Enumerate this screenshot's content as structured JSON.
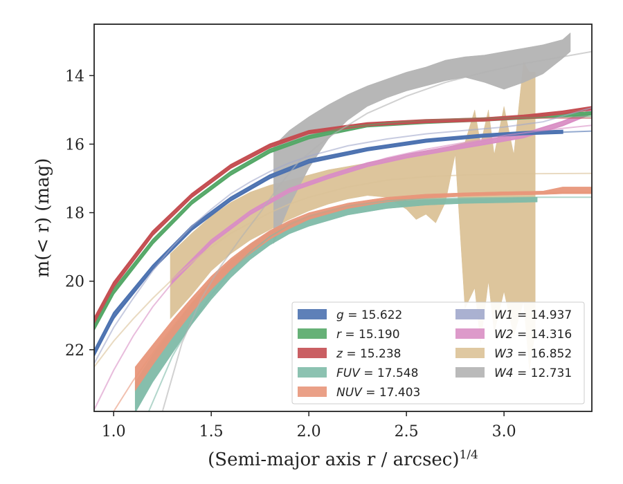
{
  "chart_data": {
    "type": "line",
    "xlabel": "(Semi-major axis r / arcsec)",
    "xlabel_sup": "1/4",
    "ylabel": "m(< r) (mag)",
    "xlim": [
      0.9,
      3.45
    ],
    "ylim": [
      23.8,
      12.5
    ],
    "y_inverted": true,
    "x_ticks": [
      {
        "value": 1.0,
        "label": "1.0"
      },
      {
        "value": 1.5,
        "label": "1.5"
      },
      {
        "value": 2.0,
        "label": "2.0"
      },
      {
        "value": 2.5,
        "label": "2.5"
      },
      {
        "value": 3.0,
        "label": "3.0"
      }
    ],
    "y_ticks": [
      {
        "value": 14,
        "label": "14"
      },
      {
        "value": 16,
        "label": "16"
      },
      {
        "value": 18,
        "label": "18"
      },
      {
        "value": 20,
        "label": "20"
      },
      {
        "value": 22,
        "label": "22"
      }
    ],
    "legend_position": "lower-right",
    "series": [
      {
        "name": "g = 15.622",
        "var": "g",
        "value": "15.622",
        "color": "#4c72b0",
        "model": {
          "x": [
            0.9,
            1.0,
            1.1,
            1.2,
            1.3,
            1.4,
            1.5,
            1.6,
            1.7,
            1.8,
            1.9,
            2.0,
            2.2,
            2.4,
            2.6,
            2.8,
            3.0,
            3.2,
            3.45
          ],
          "y": [
            22.1,
            21.1,
            20.3,
            19.65,
            19.05,
            18.5,
            18.05,
            17.65,
            17.3,
            17.0,
            16.75,
            16.55,
            16.25,
            16.05,
            15.9,
            15.8,
            15.72,
            15.67,
            15.62
          ]
        },
        "band": {
          "x": [
            0.9,
            1.0,
            1.2,
            1.4,
            1.6,
            1.8,
            2.0,
            2.3,
            2.6,
            2.9,
            3.1,
            3.3
          ],
          "y": [
            22.1,
            21.0,
            19.6,
            18.45,
            17.6,
            16.95,
            16.5,
            16.15,
            15.9,
            15.75,
            15.68,
            15.64
          ],
          "hw": [
            0.08,
            0.08,
            0.06,
            0.06,
            0.05,
            0.05,
            0.05,
            0.04,
            0.04,
            0.04,
            0.04,
            0.04
          ]
        }
      },
      {
        "name": "r = 15.190",
        "var": "r",
        "value": "15.190",
        "color": "#55a868",
        "model": {
          "x": [
            0.9,
            1.0,
            1.1,
            1.2,
            1.3,
            1.4,
            1.5,
            1.6,
            1.7,
            1.8,
            1.9,
            2.0,
            2.2,
            2.4,
            2.6,
            2.8,
            3.0,
            3.2,
            3.45
          ],
          "y": [
            21.35,
            20.35,
            19.55,
            18.9,
            18.3,
            17.75,
            17.3,
            16.9,
            16.55,
            16.25,
            15.95,
            15.75,
            15.5,
            15.38,
            15.3,
            15.26,
            15.24,
            15.22,
            15.19
          ]
        },
        "band": {
          "x": [
            0.9,
            1.0,
            1.2,
            1.4,
            1.6,
            1.8,
            2.0,
            2.3,
            2.6,
            2.9,
            3.1,
            3.45
          ],
          "y": [
            21.35,
            20.3,
            18.85,
            17.7,
            16.85,
            16.2,
            15.8,
            15.45,
            15.35,
            15.28,
            15.22,
            15.1
          ],
          "hw": [
            0.07,
            0.07,
            0.06,
            0.05,
            0.05,
            0.05,
            0.04,
            0.04,
            0.04,
            0.04,
            0.04,
            0.04
          ]
        }
      },
      {
        "name": "z = 15.238",
        "var": "z",
        "value": "15.238",
        "color": "#c44e52",
        "model": {
          "x": [
            0.9,
            1.0,
            1.1,
            1.2,
            1.3,
            1.4,
            1.5,
            1.6,
            1.7,
            1.8,
            1.9,
            2.0,
            2.2,
            2.4,
            2.6,
            2.8,
            3.0,
            3.2,
            3.45
          ],
          "y": [
            21.15,
            20.1,
            19.3,
            18.6,
            18.0,
            17.5,
            17.05,
            16.65,
            16.35,
            16.05,
            15.85,
            15.65,
            15.45,
            15.35,
            15.3,
            15.27,
            15.25,
            15.24,
            15.238
          ]
        },
        "band": {
          "x": [
            0.9,
            1.0,
            1.2,
            1.4,
            1.6,
            1.8,
            2.0,
            2.3,
            2.6,
            2.9,
            3.1,
            3.3,
            3.45
          ],
          "y": [
            21.15,
            20.1,
            18.6,
            17.5,
            16.65,
            16.05,
            15.65,
            15.42,
            15.33,
            15.28,
            15.2,
            15.08,
            14.95
          ],
          "hw": [
            0.07,
            0.07,
            0.06,
            0.05,
            0.05,
            0.05,
            0.04,
            0.04,
            0.04,
            0.04,
            0.04,
            0.04,
            0.04
          ]
        }
      },
      {
        "name": "FUV = 17.548",
        "var": "FUV",
        "value": "17.548",
        "color": "#7fbba8",
        "model": {
          "x": [
            1.18,
            1.3,
            1.4,
            1.5,
            1.6,
            1.7,
            1.8,
            1.9,
            2.0,
            2.2,
            2.4,
            2.6,
            2.8,
            3.0,
            3.2,
            3.45
          ],
          "y": [
            23.8,
            22.2,
            21.2,
            20.4,
            19.7,
            19.15,
            18.7,
            18.35,
            18.1,
            17.8,
            17.65,
            17.6,
            17.57,
            17.56,
            17.55,
            17.548
          ]
        },
        "band": {
          "x": [
            1.11,
            1.2,
            1.3,
            1.4,
            1.5,
            1.6,
            1.7,
            1.8,
            1.9,
            2.0,
            2.2,
            2.4,
            2.6,
            2.8,
            3.0,
            3.17
          ],
          "y": [
            23.4,
            22.55,
            21.75,
            20.95,
            20.25,
            19.65,
            19.15,
            18.75,
            18.45,
            18.25,
            17.95,
            17.78,
            17.7,
            17.66,
            17.64,
            17.62
          ],
          "hw": [
            0.45,
            0.4,
            0.36,
            0.32,
            0.29,
            0.25,
            0.22,
            0.2,
            0.17,
            0.15,
            0.12,
            0.1,
            0.08,
            0.07,
            0.07,
            0.07
          ]
        }
      },
      {
        "name": "NUV = 17.403",
        "var": "NUV",
        "value": "17.403",
        "color": "#e8967a",
        "model": {
          "x": [
            1.0,
            1.1,
            1.2,
            1.3,
            1.4,
            1.5,
            1.6,
            1.7,
            1.8,
            1.9,
            2.0,
            2.2,
            2.4,
            2.6,
            2.8,
            3.0,
            3.2,
            3.45
          ],
          "y": [
            23.8,
            22.9,
            22.1,
            21.35,
            20.65,
            20.05,
            19.5,
            19.05,
            18.65,
            18.35,
            18.1,
            17.8,
            17.62,
            17.52,
            17.46,
            17.43,
            17.42,
            17.403
          ]
        },
        "band": {
          "x": [
            1.11,
            1.2,
            1.3,
            1.4,
            1.5,
            1.6,
            1.7,
            1.8,
            1.9,
            2.0,
            2.2,
            2.4,
            2.6,
            2.8,
            3.0,
            3.2,
            3.3,
            3.45
          ],
          "y": [
            22.85,
            22.15,
            21.4,
            20.7,
            20.05,
            19.5,
            19.05,
            18.65,
            18.35,
            18.1,
            17.8,
            17.62,
            17.52,
            17.47,
            17.44,
            17.42,
            17.35,
            17.35
          ],
          "hw": [
            0.35,
            0.3,
            0.26,
            0.22,
            0.2,
            0.17,
            0.15,
            0.13,
            0.12,
            0.1,
            0.08,
            0.07,
            0.06,
            0.05,
            0.05,
            0.05,
            0.1,
            0.1
          ]
        }
      },
      {
        "name": "W1 = 14.937",
        "var": "W1",
        "value": "14.937",
        "color": "#a1a9cc",
        "model": {
          "x": [
            0.9,
            1.0,
            1.1,
            1.2,
            1.3,
            1.4,
            1.5,
            1.6,
            1.7,
            1.8,
            1.9,
            2.0,
            2.2,
            2.4,
            2.6,
            2.8,
            3.0,
            3.2,
            3.45
          ],
          "y": [
            22.4,
            21.35,
            20.5,
            19.7,
            19.0,
            18.4,
            17.9,
            17.45,
            17.1,
            16.8,
            16.55,
            16.35,
            16.05,
            15.85,
            15.7,
            15.6,
            15.5,
            15.35,
            14.937
          ]
        },
        "band": null
      },
      {
        "name": "W2 = 14.316",
        "var": "W2",
        "value": "14.316",
        "color": "#d98fc4",
        "model": {
          "x": [
            0.9,
            1.0,
            1.1,
            1.2,
            1.3,
            1.4,
            1.5,
            1.6,
            1.7,
            1.8,
            1.9,
            2.0,
            2.2,
            2.4,
            2.6,
            2.8,
            3.0,
            3.2,
            3.45
          ],
          "y": [
            23.75,
            22.6,
            21.6,
            20.75,
            20.05,
            19.45,
            18.9,
            18.45,
            18.05,
            17.7,
            17.4,
            17.15,
            16.75,
            16.4,
            16.15,
            15.95,
            15.75,
            15.6,
            15.45
          ]
        },
        "band": {
          "x": [
            1.3,
            1.5,
            1.7,
            1.9,
            2.1,
            2.3,
            2.5,
            2.7,
            2.9,
            3.1,
            3.3,
            3.45
          ],
          "y": [
            20.0,
            18.85,
            18.0,
            17.35,
            16.95,
            16.6,
            16.35,
            16.15,
            15.95,
            15.75,
            15.4,
            15.05
          ],
          "hw": [
            0.05,
            0.05,
            0.05,
            0.05,
            0.05,
            0.05,
            0.05,
            0.05,
            0.06,
            0.06,
            0.06,
            0.06
          ]
        }
      },
      {
        "name": "W3 = 16.852",
        "var": "W3",
        "value": "16.852",
        "color": "#dbc297",
        "model": {
          "x": [
            0.9,
            1.0,
            1.1,
            1.2,
            1.3,
            1.4,
            1.5,
            1.6,
            1.7,
            1.8,
            1.9,
            2.0,
            2.2,
            2.4,
            2.6,
            2.8,
            3.0,
            3.2,
            3.45
          ],
          "y": [
            22.5,
            21.75,
            21.1,
            20.5,
            19.95,
            19.45,
            19.0,
            18.6,
            18.3,
            18.0,
            17.75,
            17.55,
            17.25,
            17.05,
            16.95,
            16.9,
            16.87,
            16.86,
            16.852
          ]
        },
        "band": {
          "upper": {
            "x": [
              1.29,
              1.4,
              1.5,
              1.6,
              1.7,
              1.8,
              1.9,
              2.0,
              2.1,
              2.2,
              2.3,
              2.4,
              2.5,
              2.6,
              2.7,
              2.8,
              2.85,
              2.88,
              2.92,
              2.95,
              3.0,
              3.05,
              3.1,
              3.13,
              3.16
            ],
            "y": [
              19.2,
              18.6,
              18.1,
              17.7,
              17.4,
              17.2,
              17.05,
              16.9,
              16.75,
              16.65,
              16.55,
              16.45,
              16.35,
              16.2,
              16.1,
              15.95,
              15.0,
              16.0,
              15.0,
              16.3,
              14.9,
              16.3,
              13.6,
              13.9,
              13.9
            ]
          },
          "lower": {
            "x": [
              1.29,
              1.4,
              1.5,
              1.6,
              1.7,
              1.8,
              1.9,
              2.0,
              2.1,
              2.2,
              2.3,
              2.4,
              2.5,
              2.55,
              2.6,
              2.65,
              2.7,
              2.75,
              2.8,
              2.85,
              2.88,
              2.92,
              2.95,
              3.0,
              3.05,
              3.1,
              3.13,
              3.16
            ],
            "y": [
              21.1,
              20.4,
              19.7,
              19.2,
              18.8,
              18.5,
              18.2,
              17.95,
              17.75,
              17.6,
              17.5,
              17.55,
              17.9,
              18.2,
              18.05,
              18.3,
              17.7,
              16.3,
              20.8,
              20.2,
              21.8,
              20.0,
              21.5,
              20.3,
              21.6,
              20.6,
              22.6,
              21.5
            ]
          }
        }
      },
      {
        "name": "W4 = 12.731",
        "var": "W4",
        "value": "12.731",
        "color": "#b3b3b3",
        "model": {
          "x": [
            1.25,
            1.35,
            1.45,
            1.55,
            1.65,
            1.75,
            1.85,
            1.95,
            2.1,
            2.3,
            2.5,
            2.7,
            2.9,
            3.1,
            3.3,
            3.45
          ],
          "y": [
            23.8,
            21.8,
            20.5,
            19.55,
            18.75,
            18.0,
            17.2,
            16.5,
            15.8,
            15.1,
            14.6,
            14.2,
            13.9,
            13.65,
            13.45,
            13.3
          ]
        },
        "band": {
          "upper": {
            "x": [
              1.82,
              1.9,
              2.0,
              2.1,
              2.2,
              2.3,
              2.4,
              2.5,
              2.6,
              2.7,
              2.8,
              2.9,
              3.0,
              3.1,
              3.2,
              3.3,
              3.34
            ],
            "y": [
              16.05,
              15.6,
              15.2,
              14.85,
              14.55,
              14.3,
              14.1,
              13.9,
              13.75,
              13.55,
              13.45,
              13.4,
              13.3,
              13.2,
              13.1,
              12.95,
              12.75
            ]
          },
          "lower": {
            "x": [
              1.82,
              1.9,
              2.0,
              2.1,
              2.2,
              2.3,
              2.4,
              2.5,
              2.6,
              2.7,
              2.8,
              2.9,
              3.0,
              3.1,
              3.2,
              3.3,
              3.34
            ],
            "y": [
              18.9,
              17.8,
              16.7,
              15.85,
              15.3,
              14.9,
              14.65,
              14.45,
              14.3,
              14.15,
              14.05,
              14.2,
              14.4,
              14.2,
              13.95,
              13.5,
              13.3
            ]
          }
        }
      }
    ]
  }
}
